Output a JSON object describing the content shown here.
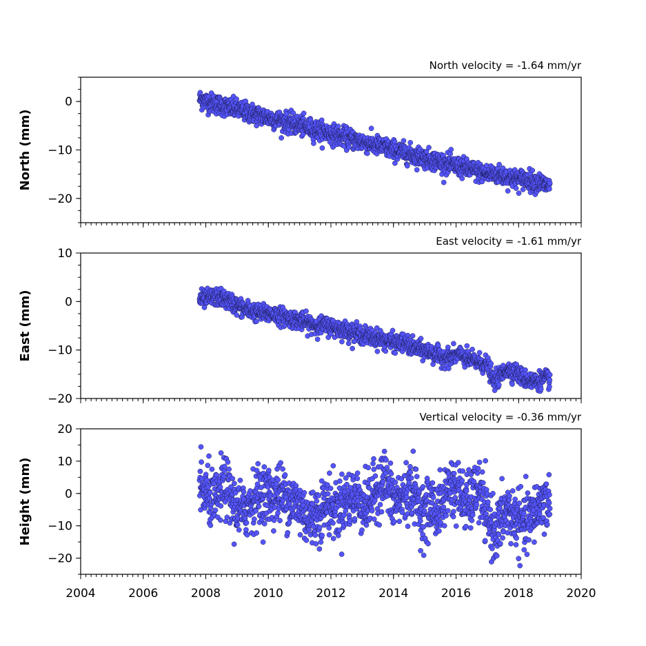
{
  "chart_data": [
    {
      "type": "scatter",
      "title": "North velocity = -1.64 mm/yr",
      "xlabel": "",
      "ylabel": "North (mm)",
      "xlim": [
        2004,
        2020
      ],
      "ylim": [
        -25,
        5
      ],
      "y_ticks": [
        0,
        -10,
        -20
      ],
      "y_tick_labels": [
        "0",
        "−10",
        "−20"
      ],
      "series": [
        {
          "marker_color": "#5555ff",
          "x": [
            2007.8,
            2008.0,
            2008.3,
            2008.6,
            2008.9,
            2009.2,
            2009.5,
            2009.8,
            2010.1,
            2010.4,
            2010.7,
            2011.0,
            2011.3,
            2011.6,
            2011.9,
            2012.2,
            2012.5,
            2012.8,
            2013.1,
            2013.4,
            2013.7,
            2014.0,
            2014.3,
            2014.6,
            2014.9,
            2015.2,
            2015.5,
            2015.8,
            2016.1,
            2016.4,
            2016.7,
            2017.0,
            2017.3,
            2017.6,
            2017.9,
            2018.2,
            2018.5,
            2018.8,
            2019.0
          ],
          "y": [
            0.5,
            0.0,
            -0.5,
            -1.0,
            -1.5,
            -2.0,
            -2.5,
            -3.0,
            -3.5,
            -4.0,
            -4.5,
            -5.0,
            -5.5,
            -6.0,
            -6.5,
            -7.0,
            -7.5,
            -8.0,
            -8.5,
            -9.0,
            -9.5,
            -10.0,
            -10.5,
            -11.0,
            -11.5,
            -12.0,
            -12.5,
            -13.0,
            -13.5,
            -14.0,
            -14.5,
            -15.0,
            -15.0,
            -15.5,
            -16.0,
            -16.0,
            -16.5,
            -17.0,
            -17.5
          ],
          "scatter": 1.0
        }
      ]
    },
    {
      "type": "scatter",
      "title": "East velocity = -1.61 mm/yr",
      "xlabel": "",
      "ylabel": "East (mm)",
      "xlim": [
        2004,
        2020
      ],
      "ylim": [
        -20,
        10
      ],
      "y_ticks": [
        10,
        0,
        -10,
        -20
      ],
      "y_tick_labels": [
        "10",
        "0",
        "−10",
        "−20"
      ],
      "series": [
        {
          "marker_color": "#5555ff",
          "x": [
            2007.8,
            2008.0,
            2008.3,
            2008.6,
            2008.9,
            2009.2,
            2009.5,
            2009.8,
            2010.1,
            2010.4,
            2010.7,
            2011.0,
            2011.3,
            2011.6,
            2011.9,
            2012.2,
            2012.5,
            2012.8,
            2013.1,
            2013.4,
            2013.7,
            2014.0,
            2014.3,
            2014.6,
            2014.9,
            2015.2,
            2015.5,
            2015.8,
            2016.1,
            2016.4,
            2016.7,
            2017.0,
            2017.2,
            2017.4,
            2017.6,
            2017.9,
            2018.2,
            2018.5,
            2018.8,
            2019.0
          ],
          "y": [
            0.5,
            0.5,
            1.0,
            0.5,
            -0.5,
            -1.5,
            -2.0,
            -2.5,
            -2.5,
            -3.0,
            -3.5,
            -4.0,
            -4.5,
            -5.0,
            -5.0,
            -5.5,
            -6.0,
            -6.5,
            -7.0,
            -7.5,
            -8.0,
            -8.5,
            -8.5,
            -9.5,
            -10.0,
            -10.5,
            -11.5,
            -11.5,
            -11.0,
            -12.0,
            -12.5,
            -13.0,
            -16.5,
            -15.5,
            -14.0,
            -14.5,
            -16.0,
            -16.5,
            -16.0,
            -16.0
          ],
          "scatter": 0.9
        }
      ]
    },
    {
      "type": "scatter",
      "title": "Vertical velocity = -0.36 mm/yr",
      "xlabel": "",
      "ylabel": "Height (mm)",
      "xlim": [
        2004,
        2020
      ],
      "ylim": [
        -25,
        20
      ],
      "y_ticks": [
        20,
        10,
        0,
        -10,
        -20
      ],
      "y_tick_labels": [
        "20",
        "10",
        "0",
        "−10",
        "−20"
      ],
      "x_ticks": [
        2004,
        2006,
        2008,
        2010,
        2012,
        2014,
        2016,
        2018,
        2020
      ],
      "x_tick_labels": [
        "2004",
        "2006",
        "2008",
        "2010",
        "2012",
        "2014",
        "2016",
        "2018",
        "2020"
      ],
      "series": [
        {
          "marker_color": "#5555ff",
          "x": [
            2007.8,
            2008.0,
            2008.3,
            2008.6,
            2008.9,
            2009.2,
            2009.5,
            2009.8,
            2010.1,
            2010.4,
            2010.7,
            2011.0,
            2011.3,
            2011.6,
            2011.9,
            2012.2,
            2012.5,
            2012.8,
            2013.1,
            2013.4,
            2013.7,
            2014.0,
            2014.3,
            2014.6,
            2014.9,
            2015.2,
            2015.5,
            2015.8,
            2016.1,
            2016.4,
            2016.7,
            2017.0,
            2017.3,
            2017.6,
            2017.9,
            2018.2,
            2018.5,
            2018.8,
            2019.0
          ],
          "y": [
            2,
            0,
            -3,
            3,
            -4,
            -6,
            -2,
            0,
            -1,
            0,
            -2,
            -4,
            -8,
            -6,
            -3,
            -5,
            -2,
            -1,
            -4,
            0,
            5,
            -3,
            -1,
            2,
            -6,
            -4,
            -5,
            3,
            0,
            -4,
            2,
            -8,
            -12,
            -5,
            -8,
            -10,
            -6,
            -2,
            -4
          ],
          "scatter": 4.5
        }
      ]
    }
  ]
}
